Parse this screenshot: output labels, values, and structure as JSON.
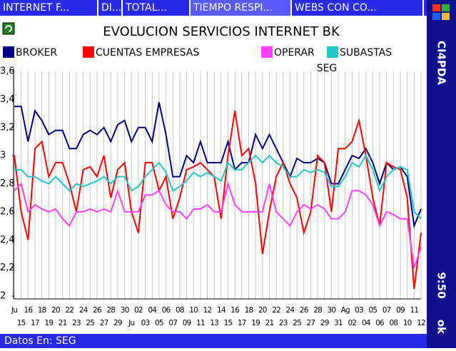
{
  "tabs": [
    "INTERNET F...",
    "DI...",
    "TOTAL...",
    "TIEMPO RESPI...",
    "WEBS CON CO..."
  ],
  "status": "Datos En: SEG",
  "side": {
    "app": "CI4PDA",
    "time": "9:50",
    "ok": "ok"
  },
  "chart_data": {
    "type": "line",
    "title": "EVOLUCION SERVICIOS INTERNET BK",
    "y_label": "SEG",
    "categories": [
      "Ju",
      "15",
      "16",
      "17",
      "18",
      "19",
      "20",
      "21",
      "22",
      "23",
      "24",
      "25",
      "26",
      "27",
      "28",
      "29",
      "30",
      "Ju",
      "02",
      "03",
      "04",
      "05",
      "06",
      "07",
      "08",
      "09",
      "10",
      "11",
      "12",
      "13",
      "14",
      "15",
      "16",
      "17",
      "18",
      "19",
      "20",
      "21",
      "22",
      "23",
      "24",
      "25",
      "26",
      "27",
      "28",
      "29",
      "30",
      "31",
      "Ag",
      "02",
      "03",
      "04",
      "05",
      "06",
      "07",
      "08",
      "09",
      "10",
      "11",
      "12"
    ],
    "series": [
      {
        "name": "BROKER",
        "color": "#000080",
        "values": [
          3.35,
          3.35,
          3.1,
          3.32,
          3.25,
          3.15,
          3.18,
          3.18,
          3.05,
          3.05,
          3.15,
          3.18,
          3.15,
          3.2,
          3.1,
          3.22,
          3.25,
          3.1,
          3.2,
          3.2,
          3.1,
          3.38,
          3.15,
          2.85,
          2.85,
          3.0,
          2.95,
          3.1,
          2.95,
          2.95,
          2.95,
          3.1,
          2.9,
          2.95,
          2.95,
          3.15,
          3.05,
          3.15,
          3.05,
          2.95,
          2.85,
          2.98,
          2.95,
          2.95,
          2.98,
          2.95,
          2.8,
          2.8,
          2.9,
          3.0,
          2.98,
          3.05,
          2.95,
          2.8,
          2.95,
          2.9,
          2.92,
          2.85,
          2.5,
          2.62
        ]
      },
      {
        "name": "CUENTAS EMPRESAS",
        "color": "#ff0000",
        "values": [
          3.0,
          2.6,
          2.4,
          3.05,
          3.1,
          2.85,
          2.95,
          2.95,
          2.8,
          2.6,
          2.9,
          2.92,
          2.85,
          3.0,
          2.7,
          2.9,
          2.95,
          2.6,
          2.45,
          2.95,
          2.95,
          2.75,
          2.85,
          2.55,
          2.7,
          2.9,
          2.92,
          2.95,
          2.9,
          2.85,
          2.55,
          3.0,
          3.32,
          3.0,
          3.05,
          2.8,
          2.3,
          2.6,
          2.85,
          2.95,
          2.8,
          2.7,
          2.45,
          2.6,
          3.0,
          2.95,
          2.6,
          3.05,
          3.05,
          3.1,
          3.25,
          3.0,
          2.7,
          2.5,
          2.95,
          2.92,
          2.9,
          2.7,
          2.05,
          2.45
        ]
      },
      {
        "name": "OPERAR",
        "color": "#ff40ff",
        "values": [
          2.75,
          2.8,
          2.6,
          2.65,
          2.62,
          2.6,
          2.62,
          2.55,
          2.5,
          2.6,
          2.6,
          2.62,
          2.6,
          2.62,
          2.6,
          2.75,
          2.6,
          2.6,
          2.6,
          2.72,
          2.72,
          2.75,
          2.65,
          2.6,
          2.6,
          2.55,
          2.62,
          2.62,
          2.65,
          2.6,
          2.6,
          2.8,
          2.65,
          2.6,
          2.6,
          2.6,
          2.6,
          2.8,
          2.6,
          2.55,
          2.5,
          2.6,
          2.65,
          2.62,
          2.65,
          2.62,
          2.55,
          2.55,
          2.6,
          2.75,
          2.75,
          2.72,
          2.65,
          2.5,
          2.6,
          2.58,
          2.55,
          2.55,
          2.2,
          2.35
        ]
      },
      {
        "name": "SUBASTAS",
        "color": "#20c8c8",
        "values": [
          2.9,
          2.9,
          2.85,
          2.85,
          2.82,
          2.8,
          2.85,
          2.8,
          2.75,
          2.8,
          2.78,
          2.8,
          2.82,
          2.85,
          2.8,
          2.85,
          2.85,
          2.75,
          2.78,
          2.85,
          2.9,
          2.95,
          2.88,
          2.75,
          2.78,
          2.82,
          2.88,
          2.85,
          2.88,
          2.85,
          2.82,
          2.95,
          2.9,
          2.9,
          2.95,
          3.0,
          2.95,
          3.0,
          2.95,
          2.92,
          2.85,
          2.85,
          2.9,
          2.88,
          2.9,
          2.88,
          2.78,
          2.78,
          2.85,
          2.95,
          2.92,
          3.0,
          2.9,
          2.75,
          2.85,
          2.9,
          2.92,
          2.9,
          2.6,
          2.55
        ]
      }
    ],
    "ylim": [
      2,
      3.6
    ],
    "yticks": [
      {
        "value": 3.6,
        "label": "3,6"
      },
      {
        "value": 3.4,
        "label": "3,4"
      },
      {
        "value": 3.2,
        "label": "3,2"
      },
      3,
      {
        "value": 2.8,
        "label": "2,8"
      },
      {
        "value": 2.6,
        "label": "2,6"
      },
      {
        "value": 2.4,
        "label": "2,4"
      },
      {
        "value": 2.2,
        "label": "2,2"
      },
      2
    ],
    "grid": "x",
    "legend": "top"
  }
}
